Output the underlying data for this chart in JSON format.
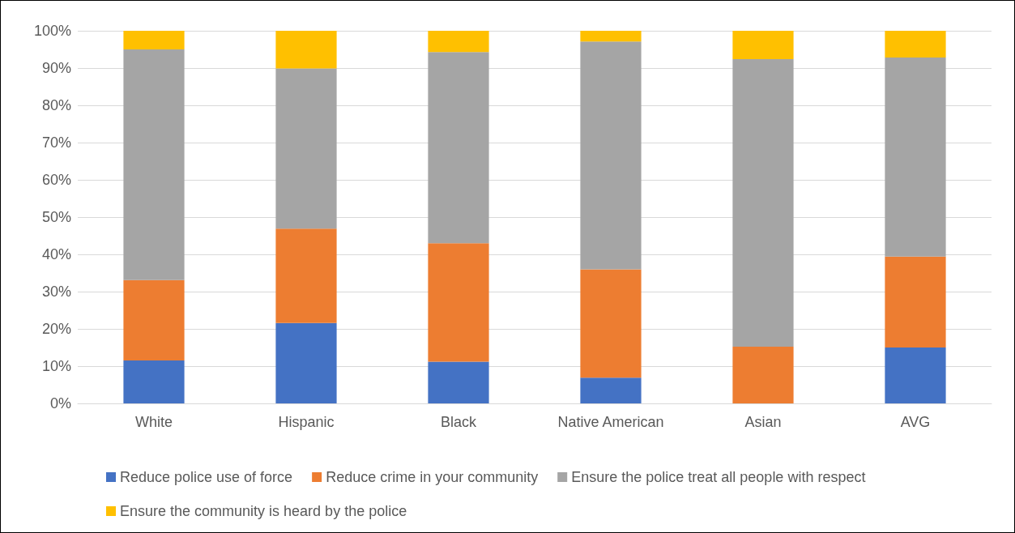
{
  "chart_data": {
    "type": "bar",
    "stacked": true,
    "categories": [
      "White",
      "Hispanic",
      "Black",
      "Native American",
      "Asian",
      "AVG"
    ],
    "series": [
      {
        "name": "Reduce police use of force",
        "color": "#4472c4",
        "values": [
          11.5,
          21.6,
          11.2,
          6.9,
          0,
          15.0
        ]
      },
      {
        "name": "Reduce crime in your community",
        "color": "#ed7d31",
        "values": [
          21.6,
          25.3,
          31.8,
          29.1,
          15.2,
          24.4
        ]
      },
      {
        "name": "Ensure the police treat all people with respect",
        "color": "#a5a5a5",
        "values": [
          61.9,
          43.0,
          51.3,
          61.1,
          77.2,
          53.4
        ]
      },
      {
        "name": "Ensure the community is heard by the police",
        "color": "#ffc000",
        "values": [
          5.0,
          10.1,
          5.7,
          2.9,
          7.6,
          7.2
        ]
      }
    ],
    "ylim": [
      0,
      100
    ],
    "yticks": [
      {
        "value": 0,
        "label": "0%"
      },
      {
        "value": 10,
        "label": "10%"
      },
      {
        "value": 20,
        "label": "20%"
      },
      {
        "value": 30,
        "label": "30%"
      },
      {
        "value": 40,
        "label": "40%"
      },
      {
        "value": 50,
        "label": "50%"
      },
      {
        "value": 60,
        "label": "60%"
      },
      {
        "value": 70,
        "label": "70%"
      },
      {
        "value": 80,
        "label": "80%"
      },
      {
        "value": 90,
        "label": "90%"
      },
      {
        "value": 100,
        "label": "100%"
      }
    ],
    "grid": "y",
    "legend": "bottom"
  }
}
